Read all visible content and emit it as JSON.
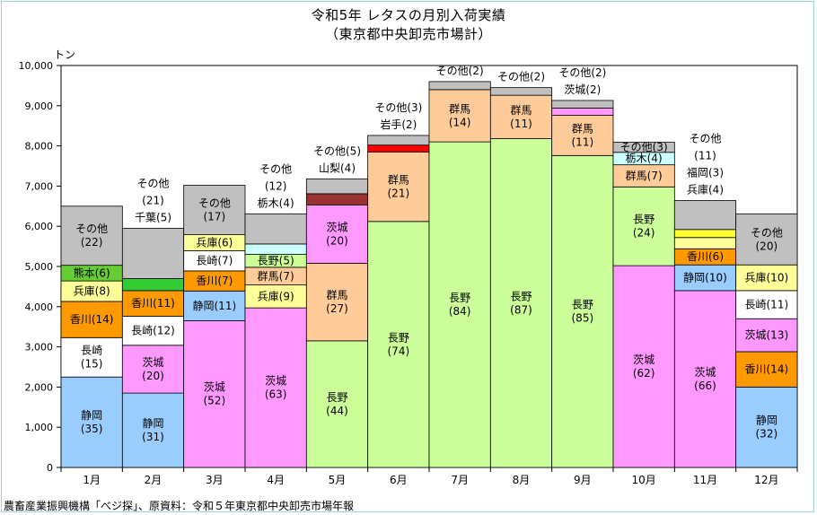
{
  "chart_data": {
    "type": "stacked-bar",
    "title": "令和5年 レタスの月別入荷実績",
    "subtitle": "（東京都中央卸売市場計）",
    "ylabel": "トン",
    "ylim": [
      0,
      10000
    ],
    "yticks": [
      "0",
      "1,000",
      "2,000",
      "3,000",
      "4,000",
      "5,000",
      "6,000",
      "7,000",
      "8,000",
      "9,000",
      "10,000"
    ],
    "grid": false,
    "source": "農畜産業振興機構「べジ探」、原資料：令和５年東京都中央卸売市場年報",
    "colors": {
      "静岡": "#99ccff",
      "長崎": "#ffffff",
      "香川": "#ff9900",
      "兵庫": "#ffff99",
      "熊本": "#66cc33",
      "千葉": "#33cc33",
      "茨城": "#ff99ff",
      "長野": "#ccff99",
      "群馬": "#ffcc99",
      "栃木": "#ccffff",
      "山梨": "#993333",
      "岩手": "#ff0000",
      "福岡": "#ffff33",
      "その他": "#c0c0c0"
    },
    "months": [
      {
        "label": "1月",
        "segments": [
          {
            "name": "静岡",
            "value": 2250,
            "label": [
              "静岡",
              "(35)"
            ]
          },
          {
            "name": "長崎",
            "value": 980,
            "label": [
              "長崎",
              "(15)"
            ]
          },
          {
            "name": "香川",
            "value": 900,
            "label": [
              "香川(14)"
            ]
          },
          {
            "name": "兵庫",
            "value": 510,
            "label": [
              "兵庫(8)"
            ]
          },
          {
            "name": "熊本",
            "value": 390,
            "label": [
              "熊本(6)"
            ]
          },
          {
            "name": "その他",
            "value": 1470,
            "label": [
              "その他",
              "(22)"
            ]
          }
        ]
      },
      {
        "label": "2月",
        "segments": [
          {
            "name": "静岡",
            "value": 1850,
            "label": [
              "静岡",
              "(31)"
            ]
          },
          {
            "name": "茨城",
            "value": 1190,
            "label": [
              "茨城",
              "(20)"
            ]
          },
          {
            "name": "長崎",
            "value": 720,
            "label": [
              "長崎(12)"
            ]
          },
          {
            "name": "香川",
            "value": 640,
            "label": [
              "香川(11)"
            ]
          },
          {
            "name": "千葉",
            "value": 300,
            "label": []
          },
          {
            "name": "その他",
            "value": 1250,
            "label": []
          }
        ],
        "top_labels": [
          "その他",
          "(21)",
          "千葉(5)"
        ]
      },
      {
        "label": "3月",
        "segments": [
          {
            "name": "茨城",
            "value": 3650,
            "label": [
              "茨城",
              "(52)"
            ]
          },
          {
            "name": "静岡",
            "value": 740,
            "label": [
              "静岡(11)"
            ]
          },
          {
            "name": "香川",
            "value": 500,
            "label": [
              "香川(7)"
            ]
          },
          {
            "name": "長崎",
            "value": 500,
            "label": [
              "長崎(7)"
            ]
          },
          {
            "name": "兵庫",
            "value": 400,
            "label": [
              "兵庫(6)"
            ]
          },
          {
            "name": "その他",
            "value": 1230,
            "label": [
              "その他",
              "(17)"
            ]
          }
        ]
      },
      {
        "label": "4月",
        "segments": [
          {
            "name": "茨城",
            "value": 3970,
            "label": [
              "茨城",
              "(63)"
            ]
          },
          {
            "name": "兵庫",
            "value": 570,
            "label": [
              "兵庫(9)"
            ]
          },
          {
            "name": "群馬",
            "value": 440,
            "label": [
              "群馬(7)"
            ]
          },
          {
            "name": "長野",
            "value": 320,
            "label": [
              "長野(5)"
            ]
          },
          {
            "name": "栃木",
            "value": 260,
            "label": []
          },
          {
            "name": "その他",
            "value": 750,
            "label": []
          }
        ],
        "top_labels": [
          "その他",
          "(12)",
          "栃木(4)"
        ]
      },
      {
        "label": "5月",
        "segments": [
          {
            "name": "長野",
            "value": 3150,
            "label": [
              "長野",
              "(44)"
            ]
          },
          {
            "name": "群馬",
            "value": 1930,
            "label": [
              "群馬",
              "(27)"
            ]
          },
          {
            "name": "茨城",
            "value": 1450,
            "label": [
              "茨城",
              "(20)"
            ]
          },
          {
            "name": "山梨",
            "value": 280,
            "label": []
          },
          {
            "name": "その他",
            "value": 370,
            "label": []
          }
        ],
        "top_labels": [
          "その他(5)",
          "山梨(4)"
        ]
      },
      {
        "label": "6月",
        "segments": [
          {
            "name": "長野",
            "value": 6120,
            "label": [
              "長野",
              "(74)"
            ]
          },
          {
            "name": "群馬",
            "value": 1730,
            "label": [
              "群馬",
              "(21)"
            ]
          },
          {
            "name": "岩手",
            "value": 170,
            "label": []
          },
          {
            "name": "その他",
            "value": 240,
            "label": []
          }
        ],
        "top_labels": [
          "その他(3)",
          "岩手(2)"
        ]
      },
      {
        "label": "7月",
        "segments": [
          {
            "name": "長野",
            "value": 8100,
            "label": [
              "長野",
              "(84)"
            ]
          },
          {
            "name": "群馬",
            "value": 1300,
            "label": [
              "群馬",
              "(14)"
            ]
          },
          {
            "name": "その他",
            "value": 200,
            "label": []
          }
        ],
        "top_labels": [
          "その他(2)"
        ]
      },
      {
        "label": "8月",
        "segments": [
          {
            "name": "長野",
            "value": 8180,
            "label": [
              "長野",
              "(87)"
            ]
          },
          {
            "name": "群馬",
            "value": 1080,
            "label": [
              "群馬",
              "(11)"
            ]
          },
          {
            "name": "その他",
            "value": 190,
            "label": []
          }
        ],
        "top_labels": [
          "その他(2)"
        ]
      },
      {
        "label": "9月",
        "segments": [
          {
            "name": "長野",
            "value": 7760,
            "label": [
              "長野",
              "(85)"
            ]
          },
          {
            "name": "群馬",
            "value": 1000,
            "label": [
              "群馬",
              "(11)"
            ]
          },
          {
            "name": "茨城",
            "value": 180,
            "label": []
          },
          {
            "name": "その他",
            "value": 190,
            "label": []
          }
        ],
        "top_labels": [
          "その他(2)",
          "茨城(2)"
        ]
      },
      {
        "label": "10月",
        "segments": [
          {
            "name": "茨城",
            "value": 5020,
            "label": [
              "茨城",
              "(62)"
            ]
          },
          {
            "name": "長野",
            "value": 1960,
            "label": [
              "長野",
              "(24)"
            ]
          },
          {
            "name": "群馬",
            "value": 550,
            "label": [
              "群馬(7)"
            ]
          },
          {
            "name": "栃木",
            "value": 310,
            "label": [
              "栃木(4)"
            ]
          },
          {
            "name": "その他",
            "value": 250,
            "label": [
              "その他(3)"
            ]
          }
        ]
      },
      {
        "label": "11月",
        "segments": [
          {
            "name": "茨城",
            "value": 4400,
            "label": [
              "茨城",
              "(66)"
            ]
          },
          {
            "name": "静岡",
            "value": 640,
            "label": [
              "静岡(10)"
            ]
          },
          {
            "name": "香川",
            "value": 400,
            "label": [
              "香川(6)"
            ]
          },
          {
            "name": "兵庫",
            "value": 280,
            "label": []
          },
          {
            "name": "福岡",
            "value": 200,
            "label": []
          },
          {
            "name": "その他",
            "value": 720,
            "label": []
          }
        ],
        "top_labels": [
          "その他",
          "(11)",
          "福岡(3)",
          "兵庫(4)"
        ]
      },
      {
        "label": "12月",
        "segments": [
          {
            "name": "静岡",
            "value": 2000,
            "label": [
              "静岡",
              "(32)"
            ]
          },
          {
            "name": "香川",
            "value": 880,
            "label": [
              "香川(14)"
            ]
          },
          {
            "name": "茨城",
            "value": 820,
            "label": [
              "茨城(13)"
            ]
          },
          {
            "name": "長崎",
            "value": 700,
            "label": [
              "長崎(11)"
            ]
          },
          {
            "name": "兵庫",
            "value": 640,
            "label": [
              "兵庫(10)"
            ]
          },
          {
            "name": "その他",
            "value": 1270,
            "label": [
              "その他",
              "(20)"
            ]
          }
        ]
      }
    ]
  }
}
